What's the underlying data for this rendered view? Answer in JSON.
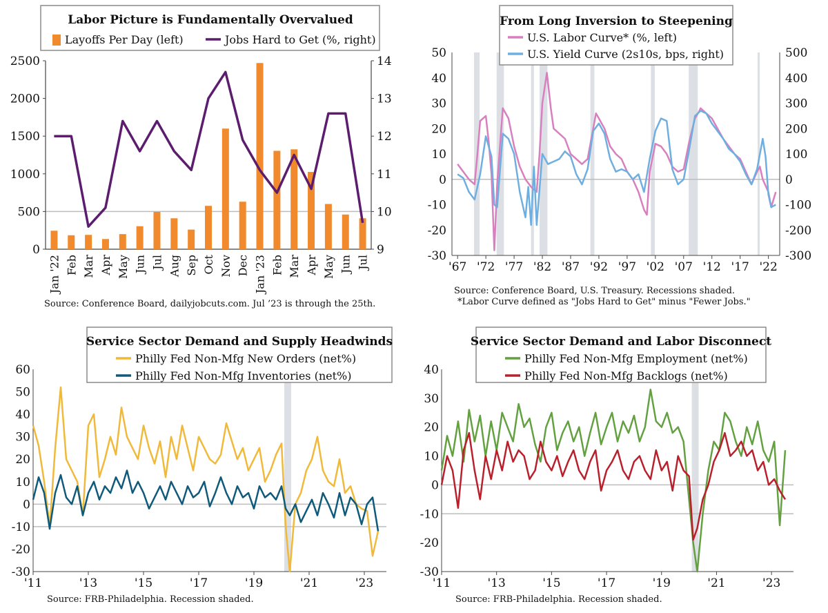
{
  "chart_data": [
    {
      "type": "bar",
      "title": "Labor Picture is Fundamentally Overvalued",
      "source": "Source: Conference Board, dailyjobcuts.com. Jul ’23 is through the 25th.",
      "categories": [
        "Jan '22",
        "Feb",
        "Mar",
        "Apr",
        "May",
        "Jun",
        "Jul",
        "Aug",
        "Sep",
        "Oct",
        "Nov",
        "Dec",
        "Jan '23",
        "Feb",
        "Mar",
        "Apr",
        "May",
        "Jun",
        "Jul"
      ],
      "ylim_left": [
        0,
        2500
      ],
      "left_ticks": [
        "0",
        "500",
        "1000",
        "1500",
        "2000",
        "2500"
      ],
      "ylim_right": [
        9,
        14
      ],
      "right_ticks": [
        "9",
        "10",
        "11",
        "12",
        "13",
        "14"
      ],
      "series": [
        {
          "name": "Layoffs Per Day (left)",
          "kind": "bar",
          "axis": "left",
          "color": "#f08a2c",
          "values": [
            245,
            185,
            190,
            135,
            200,
            305,
            495,
            410,
            260,
            575,
            1600,
            630,
            2470,
            1305,
            1325,
            1025,
            600,
            460,
            410
          ]
        },
        {
          "name": "Jobs Hard to Get (%, right)",
          "kind": "line",
          "axis": "right",
          "color": "#5c1d6e",
          "values": [
            12.0,
            12.0,
            9.6,
            10.1,
            12.4,
            11.6,
            12.4,
            11.6,
            11.1,
            13.0,
            13.7,
            11.9,
            11.1,
            10.5,
            11.5,
            10.6,
            12.6,
            12.6,
            9.7
          ]
        }
      ]
    },
    {
      "type": "line",
      "title": "From Long Inversion to Steepening",
      "source": "Source: Conference Board, U.S. Treasury. Recessions shaded.",
      "footnote": "*Labor Curve defined as \"Jobs Hard to Get\" minus \"Fewer Jobs.\"",
      "x_ticks": [
        "'67",
        "'72",
        "'77",
        "'82",
        "'87",
        "'92",
        "'97",
        "'02",
        "'07",
        "'12",
        "'17",
        "'22"
      ],
      "xlim": [
        1966,
        2024
      ],
      "ylim_left": [
        -30,
        50
      ],
      "left_ticks": [
        "-30",
        "-20",
        "-10",
        "0",
        "10",
        "20",
        "30",
        "40",
        "50"
      ],
      "ylim_right": [
        -300,
        500
      ],
      "right_ticks": [
        "-300",
        "-200",
        "-100",
        "0",
        "100",
        "200",
        "300",
        "400",
        "500"
      ],
      "recessions": [
        [
          1969.9,
          1970.9
        ],
        [
          1973.9,
          1975.2
        ],
        [
          1980.0,
          1980.5
        ],
        [
          1981.5,
          1982.9
        ],
        [
          1990.5,
          1991.2
        ],
        [
          2001.2,
          2001.9
        ],
        [
          2007.9,
          2009.5
        ],
        [
          2020.1,
          2020.35
        ]
      ],
      "series": [
        {
          "name": "U.S. Labor Curve* (%, left)",
          "axis": "left",
          "color": "#d87fbf",
          "x": [
            1967,
            1968,
            1969,
            1970,
            1970.5,
            1971,
            1972,
            1972.5,
            1973,
            1973.5,
            1974,
            1975,
            1976,
            1977,
            1978,
            1979,
            1980,
            1981,
            1981.5,
            1982,
            1982.8,
            1983.5,
            1984,
            1985,
            1986,
            1987,
            1988,
            1989,
            1990,
            1991,
            1991.5,
            1992,
            1993,
            1994,
            1995,
            1996,
            1997,
            1998,
            1999,
            2000,
            2000.5,
            2001,
            2002,
            2003,
            2004,
            2005,
            2006,
            2007,
            2008,
            2009,
            2009.8,
            2010,
            2011,
            2012,
            2013,
            2014,
            2015,
            2016,
            2017,
            2018,
            2019,
            2020,
            2020.5,
            2021,
            2022,
            2022.5,
            2023.3
          ],
          "values": [
            6,
            3,
            0,
            -2,
            10,
            23,
            25,
            15,
            2,
            -28,
            -2,
            28,
            24,
            13,
            5,
            0,
            -3,
            -5,
            10,
            30,
            42,
            28,
            20,
            18,
            16,
            10,
            8,
            6,
            8,
            20,
            26,
            24,
            20,
            13,
            10,
            8,
            3,
            0,
            -5,
            -12,
            -14,
            3,
            14,
            13,
            10,
            5,
            3,
            4,
            15,
            24,
            27,
            28,
            26,
            24,
            20,
            16,
            13,
            10,
            8,
            3,
            -2,
            3,
            5,
            0,
            -5,
            -11,
            -5
          ]
        },
        {
          "name": "U.S. Yield Curve (2s10s, bps, right)",
          "axis": "right",
          "color": "#6fafe0",
          "x": [
            1967,
            1968,
            1969,
            1970,
            1971,
            1972,
            1973,
            1973.5,
            1974,
            1975,
            1976,
            1977,
            1978,
            1979,
            1979.5,
            1980,
            1980.5,
            1981,
            1982,
            1982.5,
            1983,
            1984,
            1985,
            1986,
            1987,
            1988,
            1989,
            1990,
            1991,
            1992,
            1993,
            1994,
            1995,
            1996,
            1997,
            1998,
            1999,
            2000,
            2001,
            2002,
            2003,
            2004,
            2005,
            2006,
            2007,
            2008,
            2009,
            2010,
            2011,
            2012,
            2013,
            2014,
            2015,
            2016,
            2017,
            2018,
            2019,
            2020,
            2021,
            2021.5,
            2022,
            2022.5,
            2023.3
          ],
          "values": [
            20,
            5,
            -50,
            -80,
            20,
            170,
            90,
            -100,
            -110,
            180,
            160,
            100,
            -50,
            -150,
            -30,
            -180,
            50,
            -180,
            100,
            80,
            60,
            70,
            80,
            110,
            90,
            20,
            -20,
            40,
            190,
            220,
            180,
            80,
            30,
            40,
            30,
            0,
            20,
            -50,
            80,
            190,
            240,
            230,
            40,
            -20,
            0,
            120,
            250,
            270,
            260,
            220,
            190,
            160,
            120,
            100,
            70,
            20,
            -20,
            40,
            160,
            90,
            -60,
            -110,
            -100
          ]
        }
      ]
    },
    {
      "type": "line",
      "title": "Service Sector Demand and Supply Headwinds",
      "source": "Source: FRB-Philadelphia. Recession shaded.",
      "x_ticks": [
        "'11",
        "'13",
        "'15",
        "'17",
        "'19",
        "'21",
        "'23"
      ],
      "xlim": [
        2011,
        2023.8
      ],
      "ylim": [
        -30,
        60
      ],
      "y_ticks": [
        "-30",
        "-20",
        "-10",
        "0",
        "10",
        "20",
        "30",
        "40",
        "50",
        "60"
      ],
      "recessions": [
        [
          2020.1,
          2020.35
        ]
      ],
      "series": [
        {
          "name": "Philly Fed Non-Mfg New Orders (net%)",
          "color": "#f0b93a",
          "x": [
            2011,
            2011.2,
            2011.4,
            2011.6,
            2011.8,
            2012.0,
            2012.2,
            2012.4,
            2012.6,
            2012.8,
            2013.0,
            2013.2,
            2013.4,
            2013.6,
            2013.8,
            2014.0,
            2014.2,
            2014.4,
            2014.6,
            2014.8,
            2015.0,
            2015.2,
            2015.4,
            2015.6,
            2015.8,
            2016.0,
            2016.2,
            2016.4,
            2016.6,
            2016.8,
            2017.0,
            2017.2,
            2017.4,
            2017.6,
            2017.8,
            2018.0,
            2018.2,
            2018.4,
            2018.6,
            2018.8,
            2019.0,
            2019.2,
            2019.4,
            2019.6,
            2019.8,
            2020.0,
            2020.15,
            2020.3,
            2020.5,
            2020.7,
            2020.9,
            2021.1,
            2021.3,
            2021.5,
            2021.7,
            2021.9,
            2022.1,
            2022.3,
            2022.5,
            2022.7,
            2022.9,
            2023.1,
            2023.3,
            2023.5
          ],
          "values": [
            35,
            26,
            10,
            -10,
            25,
            52,
            20,
            15,
            10,
            -5,
            35,
            40,
            12,
            20,
            30,
            22,
            43,
            30,
            25,
            20,
            35,
            25,
            18,
            28,
            12,
            30,
            20,
            35,
            25,
            15,
            30,
            25,
            20,
            18,
            22,
            36,
            28,
            20,
            25,
            15,
            20,
            25,
            10,
            15,
            22,
            27,
            -10,
            -30,
            0,
            5,
            15,
            20,
            30,
            15,
            10,
            8,
            20,
            5,
            8,
            0,
            -2,
            -3,
            -23,
            -12
          ]
        },
        {
          "name": "Philly Fed Non-Mfg Inventories (net%)",
          "color": "#0f5a7a",
          "x": [
            2011,
            2011.2,
            2011.4,
            2011.6,
            2011.8,
            2012.0,
            2012.2,
            2012.4,
            2012.6,
            2012.8,
            2013.0,
            2013.2,
            2013.4,
            2013.6,
            2013.8,
            2014.0,
            2014.2,
            2014.4,
            2014.6,
            2014.8,
            2015.0,
            2015.2,
            2015.4,
            2015.6,
            2015.8,
            2016.0,
            2016.2,
            2016.4,
            2016.6,
            2016.8,
            2017.0,
            2017.2,
            2017.4,
            2017.6,
            2017.8,
            2018.0,
            2018.2,
            2018.4,
            2018.6,
            2018.8,
            2019.0,
            2019.2,
            2019.4,
            2019.6,
            2019.8,
            2020.0,
            2020.15,
            2020.3,
            2020.5,
            2020.7,
            2020.9,
            2021.1,
            2021.3,
            2021.5,
            2021.7,
            2021.9,
            2022.1,
            2022.3,
            2022.5,
            2022.7,
            2022.9,
            2023.1,
            2023.3,
            2023.5
          ],
          "values": [
            2,
            12,
            5,
            -11,
            5,
            13,
            3,
            0,
            8,
            -5,
            5,
            10,
            2,
            8,
            5,
            12,
            7,
            15,
            5,
            10,
            5,
            -2,
            3,
            8,
            2,
            10,
            5,
            0,
            8,
            3,
            5,
            10,
            -1,
            5,
            12,
            5,
            0,
            8,
            3,
            5,
            -2,
            8,
            3,
            5,
            2,
            8,
            -2,
            -5,
            0,
            -8,
            -3,
            2,
            -5,
            5,
            0,
            -6,
            5,
            -5,
            3,
            0,
            -9,
            0,
            3,
            -12
          ]
        }
      ]
    },
    {
      "type": "line",
      "title": "Service Sector Demand and Labor Disconnect",
      "source": "Source: FRB-Philadelphia. Recession shaded.",
      "x_ticks": [
        "'11",
        "'13",
        "'15",
        "'17",
        "'19",
        "'21",
        "'23"
      ],
      "xlim": [
        2011,
        2023.8
      ],
      "ylim": [
        -30,
        40
      ],
      "y_ticks": [
        "-30",
        "-20",
        "-10",
        "0",
        "10",
        "20",
        "30",
        "40"
      ],
      "recessions": [
        [
          2020.1,
          2020.35
        ]
      ],
      "series": [
        {
          "name": "Philly Fed Non-Mfg Employment (net%)",
          "color": "#63a040",
          "x": [
            2011,
            2011.2,
            2011.4,
            2011.6,
            2011.8,
            2012.0,
            2012.2,
            2012.4,
            2012.6,
            2012.8,
            2013.0,
            2013.2,
            2013.4,
            2013.6,
            2013.8,
            2014.0,
            2014.2,
            2014.4,
            2014.6,
            2014.8,
            2015.0,
            2015.2,
            2015.4,
            2015.6,
            2015.8,
            2016.0,
            2016.2,
            2016.4,
            2016.6,
            2016.8,
            2017.0,
            2017.2,
            2017.4,
            2017.6,
            2017.8,
            2018.0,
            2018.2,
            2018.4,
            2018.6,
            2018.8,
            2019.0,
            2019.2,
            2019.4,
            2019.6,
            2019.8,
            2020.0,
            2020.15,
            2020.3,
            2020.5,
            2020.7,
            2020.9,
            2021.1,
            2021.3,
            2021.5,
            2021.7,
            2021.9,
            2022.1,
            2022.3,
            2022.5,
            2022.7,
            2022.9,
            2023.1,
            2023.3,
            2023.5
          ],
          "values": [
            5,
            17,
            10,
            22,
            8,
            26,
            15,
            24,
            10,
            22,
            12,
            25,
            20,
            15,
            28,
            20,
            23,
            14,
            8,
            20,
            25,
            12,
            18,
            22,
            15,
            20,
            10,
            18,
            25,
            14,
            20,
            25,
            15,
            22,
            18,
            24,
            15,
            20,
            33,
            22,
            20,
            25,
            18,
            20,
            15,
            -5,
            -20,
            -30,
            -10,
            5,
            15,
            12,
            25,
            22,
            15,
            10,
            20,
            14,
            22,
            12,
            8,
            15,
            -14,
            12
          ]
        },
        {
          "name": "Philly Fed Non-Mfg Backlogs (net%)",
          "color": "#b8202c",
          "x": [
            2011,
            2011.2,
            2011.4,
            2011.6,
            2011.8,
            2012.0,
            2012.2,
            2012.4,
            2012.6,
            2012.8,
            2013.0,
            2013.2,
            2013.4,
            2013.6,
            2013.8,
            2014.0,
            2014.2,
            2014.4,
            2014.6,
            2014.8,
            2015.0,
            2015.2,
            2015.4,
            2015.6,
            2015.8,
            2016.0,
            2016.2,
            2016.4,
            2016.6,
            2016.8,
            2017.0,
            2017.2,
            2017.4,
            2017.6,
            2017.8,
            2018.0,
            2018.2,
            2018.4,
            2018.6,
            2018.8,
            2019.0,
            2019.2,
            2019.4,
            2019.6,
            2019.8,
            2020.0,
            2020.15,
            2020.3,
            2020.5,
            2020.7,
            2020.9,
            2021.1,
            2021.3,
            2021.5,
            2021.7,
            2021.9,
            2022.1,
            2022.3,
            2022.5,
            2022.7,
            2022.9,
            2023.1,
            2023.3,
            2023.5
          ],
          "values": [
            0,
            10,
            5,
            -8,
            12,
            18,
            5,
            -5,
            10,
            2,
            12,
            5,
            15,
            8,
            12,
            10,
            2,
            5,
            15,
            8,
            5,
            10,
            3,
            8,
            12,
            5,
            2,
            8,
            12,
            -2,
            5,
            8,
            12,
            5,
            2,
            8,
            10,
            5,
            2,
            12,
            5,
            8,
            -2,
            10,
            5,
            3,
            -19,
            -15,
            -5,
            0,
            8,
            12,
            18,
            10,
            12,
            15,
            10,
            12,
            5,
            8,
            0,
            2,
            -2,
            -5
          ]
        }
      ]
    }
  ]
}
